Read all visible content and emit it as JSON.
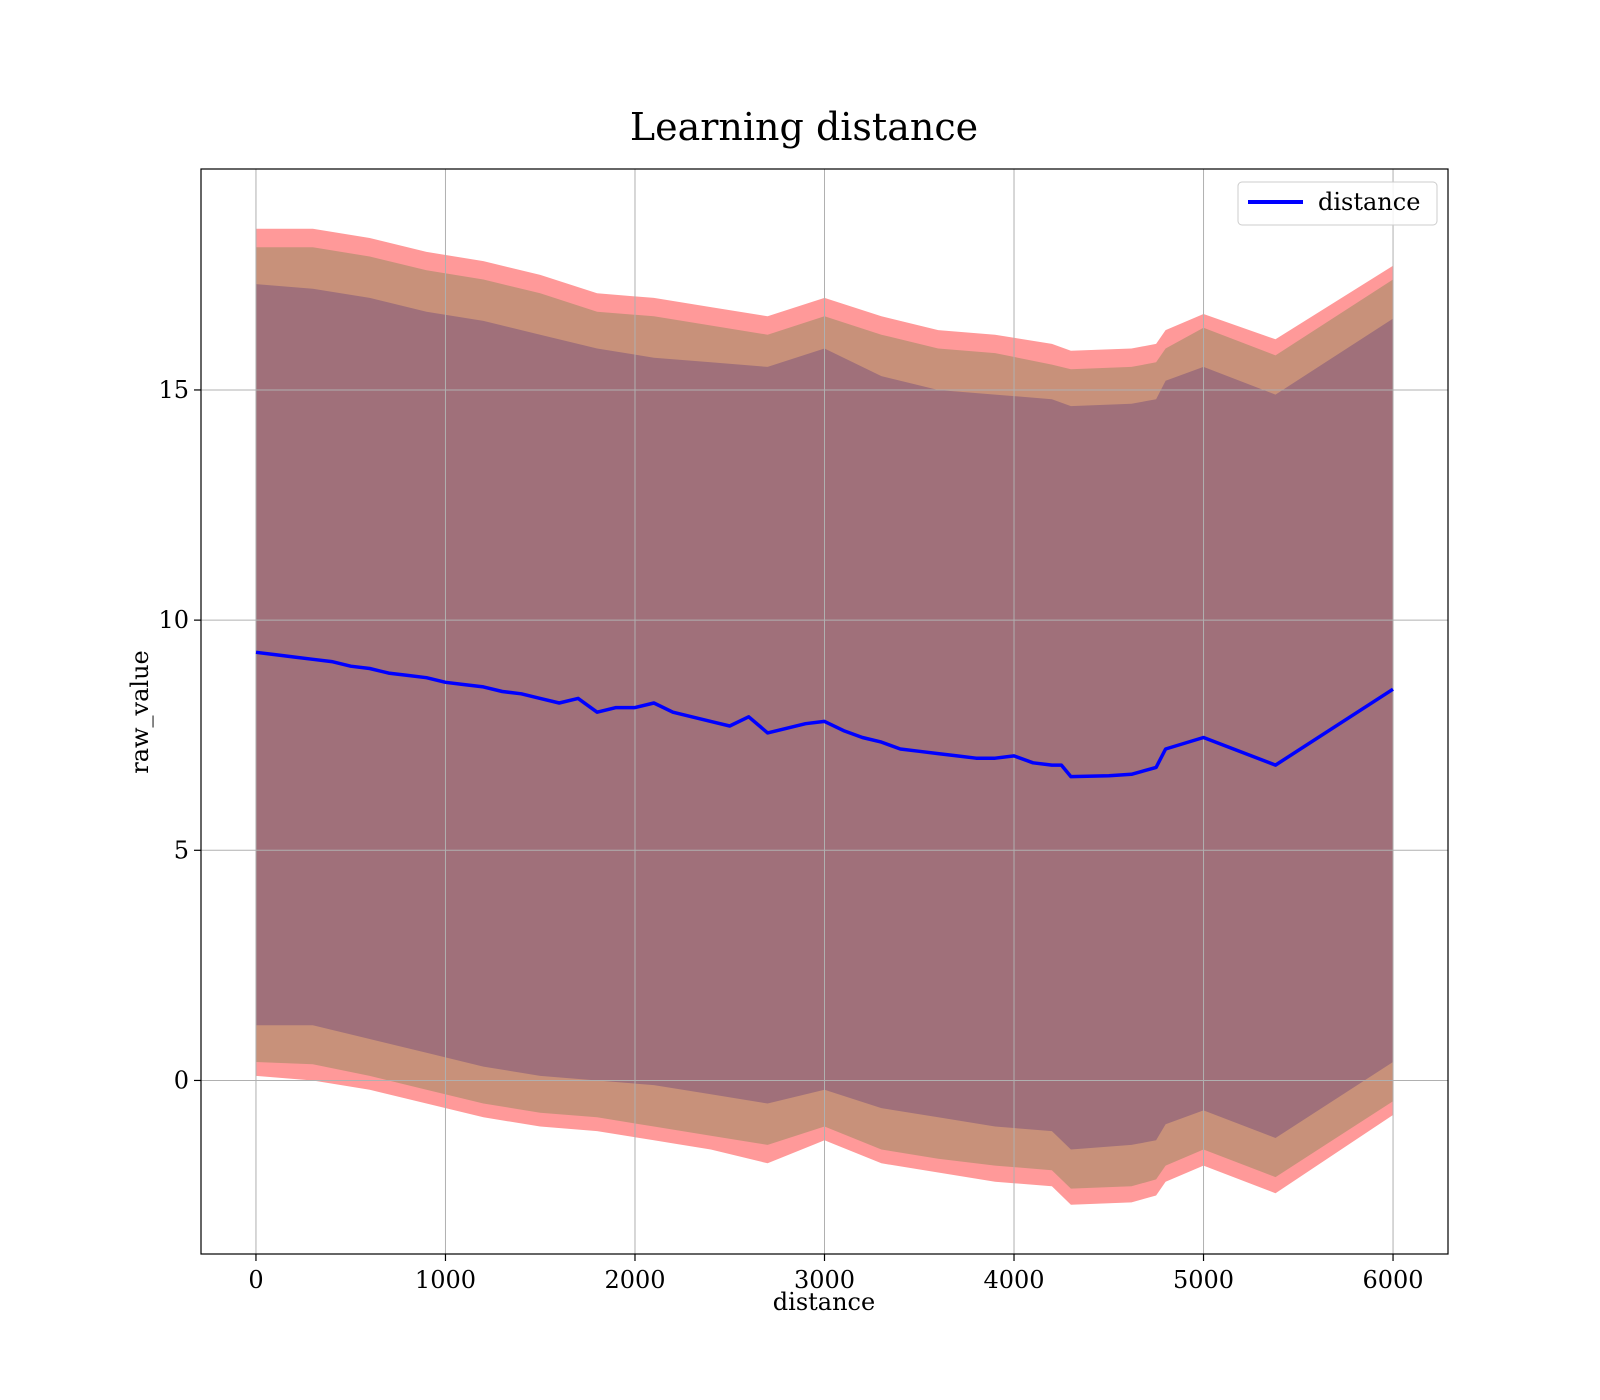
{
  "chart_data": {
    "type": "line",
    "title": "Learning distance",
    "xlabel": "distance",
    "ylabel": "raw_value",
    "xlim": [
      -290,
      6290
    ],
    "ylim": [
      -3.77,
      19.8
    ],
    "xticks": [
      0,
      1000,
      2000,
      3000,
      4000,
      5000,
      6000
    ],
    "xtick_labels": [
      "0",
      "1000",
      "2000",
      "3000",
      "4000",
      "5000",
      "6000"
    ],
    "yticks": [
      0,
      5,
      10,
      15
    ],
    "ytick_labels": [
      "0",
      "5",
      "10",
      "15"
    ],
    "grid": true,
    "legend": {
      "position": "top-right",
      "entries": [
        "distance"
      ]
    },
    "colors": {
      "line": "#0000ff",
      "band_outer": "#ff9999",
      "band_middle": "#c8917a",
      "band_inner": "#a0707a"
    },
    "series": [
      {
        "name": "distance",
        "x": [
          0,
          100,
          200,
          300,
          400,
          500,
          600,
          700,
          800,
          900,
          1000,
          1100,
          1200,
          1300,
          1400,
          1500,
          1600,
          1700,
          1800,
          1900,
          2000,
          2100,
          2200,
          2300,
          2400,
          2500,
          2600,
          2700,
          2800,
          2900,
          3000,
          3100,
          3200,
          3300,
          3400,
          3500,
          3600,
          3700,
          3800,
          3900,
          4000,
          4100,
          4200,
          4250,
          4300,
          4500,
          4620,
          4750,
          4800,
          5000,
          5380,
          6000
        ],
        "y": [
          9.3,
          9.25,
          9.2,
          9.15,
          9.1,
          9.0,
          8.95,
          8.85,
          8.8,
          8.75,
          8.65,
          8.6,
          8.55,
          8.45,
          8.4,
          8.3,
          8.2,
          8.3,
          8.0,
          8.1,
          8.1,
          8.2,
          8.0,
          7.9,
          7.8,
          7.7,
          7.9,
          7.55,
          7.65,
          7.75,
          7.8,
          7.6,
          7.45,
          7.35,
          7.2,
          7.15,
          7.1,
          7.05,
          7.0,
          7.0,
          7.05,
          6.9,
          6.85,
          6.85,
          6.6,
          6.62,
          6.65,
          6.8,
          7.2,
          7.45,
          6.85,
          8.5
        ]
      }
    ],
    "bands": [
      {
        "x": [
          0,
          300,
          600,
          900,
          1200,
          1500,
          1800,
          2100,
          2400,
          2700,
          3000,
          3300,
          3600,
          3900,
          4200,
          4300,
          4620,
          4750,
          4800,
          5000,
          5380,
          6000
        ],
        "upper": [
          18.5,
          18.5,
          18.3,
          18.0,
          17.8,
          17.5,
          17.1,
          17.0,
          16.8,
          16.6,
          17.0,
          16.6,
          16.3,
          16.2,
          16.0,
          15.85,
          15.9,
          16.0,
          16.3,
          16.65,
          16.1,
          17.7
        ],
        "lower": [
          0.1,
          0.0,
          -0.2,
          -0.5,
          -0.8,
          -1.0,
          -1.1,
          -1.3,
          -1.5,
          -1.8,
          -1.3,
          -1.8,
          -2.0,
          -2.2,
          -2.3,
          -2.7,
          -2.65,
          -2.5,
          -2.2,
          -1.85,
          -2.45,
          -0.75
        ]
      },
      {
        "x": [
          0,
          300,
          600,
          900,
          1200,
          1500,
          1800,
          2100,
          2400,
          2700,
          3000,
          3300,
          3600,
          3900,
          4200,
          4300,
          4620,
          4750,
          4800,
          5000,
          5380,
          6000
        ],
        "upper": [
          18.1,
          18.1,
          17.9,
          17.6,
          17.4,
          17.1,
          16.7,
          16.6,
          16.4,
          16.2,
          16.6,
          16.2,
          15.9,
          15.8,
          15.55,
          15.45,
          15.5,
          15.6,
          15.9,
          16.35,
          15.75,
          17.4
        ],
        "lower": [
          0.4,
          0.35,
          0.1,
          -0.2,
          -0.5,
          -0.7,
          -0.8,
          -1.0,
          -1.2,
          -1.4,
          -1.0,
          -1.5,
          -1.7,
          -1.85,
          -1.95,
          -2.35,
          -2.3,
          -2.15,
          -1.85,
          -1.5,
          -2.1,
          -0.45
        ]
      },
      {
        "x": [
          0,
          300,
          600,
          900,
          1200,
          1500,
          1800,
          2100,
          2400,
          2700,
          3000,
          3300,
          3600,
          3900,
          4200,
          4300,
          4620,
          4750,
          4800,
          5000,
          5380,
          6000
        ],
        "upper": [
          17.3,
          17.2,
          17.0,
          16.7,
          16.5,
          16.2,
          15.9,
          15.7,
          15.6,
          15.5,
          15.9,
          15.3,
          15.0,
          14.9,
          14.8,
          14.65,
          14.7,
          14.8,
          15.2,
          15.5,
          14.9,
          16.55
        ],
        "lower": [
          1.2,
          1.2,
          0.9,
          0.6,
          0.3,
          0.1,
          0.0,
          -0.1,
          -0.3,
          -0.5,
          -0.2,
          -0.6,
          -0.8,
          -1.0,
          -1.1,
          -1.5,
          -1.4,
          -1.3,
          -0.95,
          -0.65,
          -1.25,
          0.4
        ]
      }
    ]
  }
}
